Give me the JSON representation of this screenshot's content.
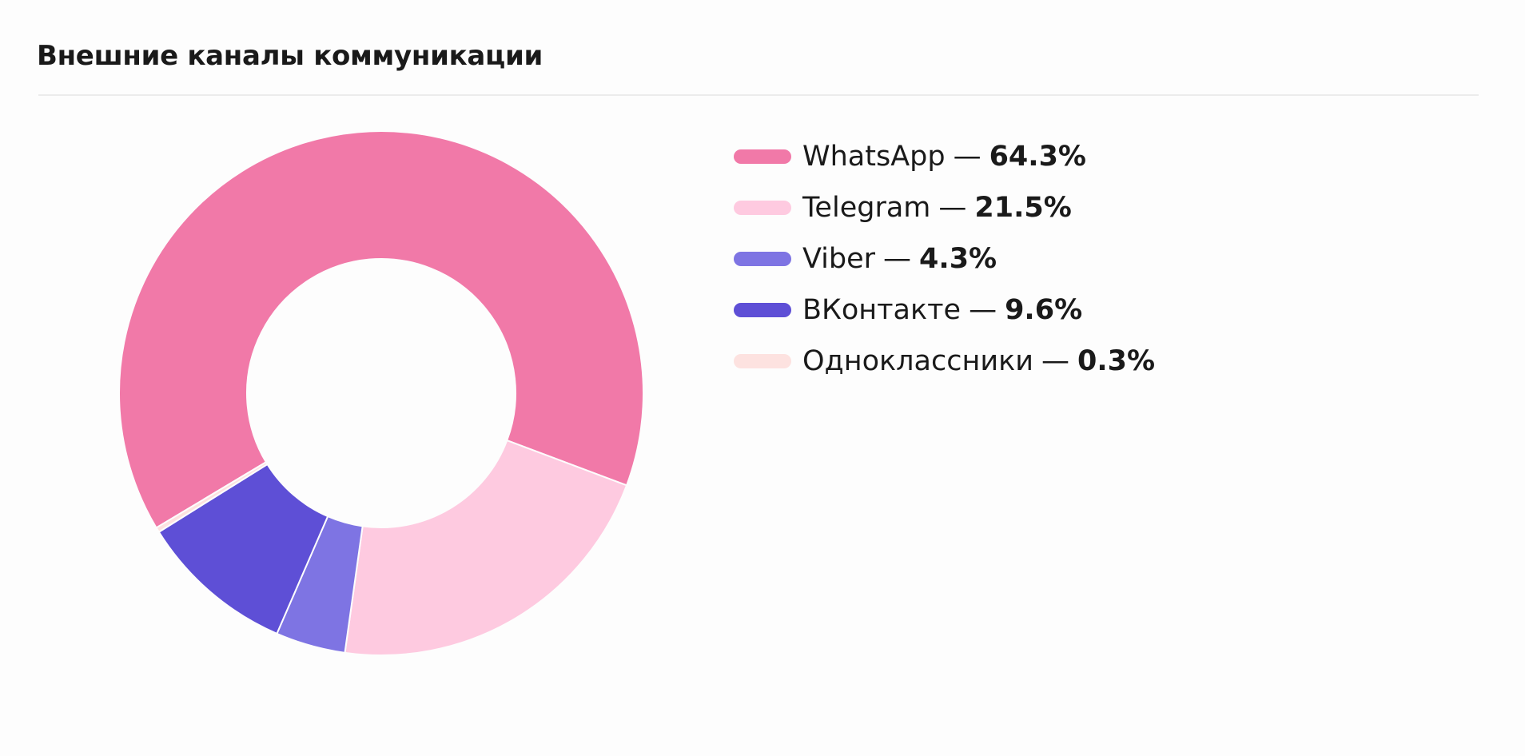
{
  "title": "Внешние каналы коммуникации",
  "legend_separator": "—",
  "chart_data": {
    "type": "pie",
    "variant": "donut",
    "title": "Внешние каналы коммуникации",
    "series": [
      {
        "name": "WhatsApp",
        "value": 64.3,
        "label": "64.3%",
        "color": "#f179a8"
      },
      {
        "name": "Telegram",
        "value": 21.5,
        "label": "21.5%",
        "color": "#fecae0"
      },
      {
        "name": "Viber",
        "value": 4.3,
        "label": "4.3%",
        "color": "#7e74e3"
      },
      {
        "name": "ВКонтакте",
        "value": 9.6,
        "label": "9.6%",
        "color": "#5e4fd6"
      },
      {
        "name": "Одноклассники",
        "value": 0.3,
        "label": "0.3%",
        "color": "#fde2e0"
      }
    ],
    "legend_position": "right",
    "start_angle_deg": -120.9,
    "direction": "clockwise"
  }
}
